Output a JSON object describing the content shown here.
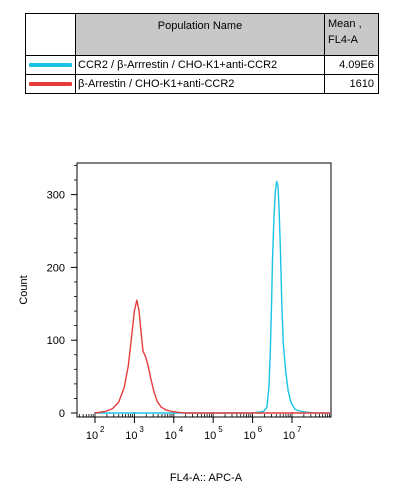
{
  "legend": {
    "header_name": "Population Name",
    "header_mean_line1": "Mean ,",
    "header_mean_line2": "FL4-A",
    "rows": [
      {
        "name": "CCR2 / β-Arrrestin / CHO-K1+anti-CCR2",
        "mean": "4.09E6",
        "color": "#19c3e6"
      },
      {
        "name": "β-Arrestin / CHO-K1+anti-CCR2",
        "mean": "1610",
        "color": "#e63c3c"
      }
    ]
  },
  "chart_data": {
    "type": "line",
    "title": "",
    "xlabel": "FL4-A:: APC-A",
    "ylabel": "Count",
    "xscale": "log",
    "xlim": [
      100,
      1000000000
    ],
    "ylim": [
      0,
      350
    ],
    "y_ticks": [
      "0",
      "100",
      "200",
      "300"
    ],
    "x_ticks": [
      {
        "base": "10",
        "exp": "2"
      },
      {
        "base": "10",
        "exp": "3"
      },
      {
        "base": "10",
        "exp": "4"
      },
      {
        "base": "10",
        "exp": "5"
      },
      {
        "base": "10",
        "exp": "6"
      },
      {
        "base": "10",
        "exp": "7"
      }
    ],
    "series": [
      {
        "name": "CCR2 / β-Arrrestin / CHO-K1+anti-CCR2",
        "color": "#19c3e6",
        "x": [
          100,
          30000,
          1000000,
          1900000,
          2300000,
          2600000,
          2800000,
          3000000,
          3200000,
          3500000,
          3800000,
          4100000,
          4400000,
          4700000,
          5100000,
          5500000,
          6000000,
          7000000,
          8000000,
          9500000,
          12000000,
          17000000,
          25000000,
          35000000,
          60000000,
          1000000000
        ],
        "y": [
          0,
          0,
          0,
          2,
          8,
          35,
          80,
          140,
          210,
          270,
          305,
          318,
          312,
          280,
          220,
          150,
          95,
          55,
          30,
          14,
          5,
          2,
          1,
          0,
          0,
          0
        ]
      },
      {
        "name": "β-Arrestin / CHO-K1+anti-CCR2",
        "color": "#e63c3c",
        "x": [
          100,
          180,
          280,
          400,
          550,
          700,
          850,
          1000,
          1150,
          1300,
          1450,
          1650,
          1900,
          2200,
          2600,
          3100,
          3800,
          4800,
          6500,
          9000,
          13000,
          20000,
          30000,
          60000,
          1000000000
        ],
        "y": [
          0,
          2,
          6,
          15,
          35,
          65,
          105,
          140,
          155,
          142,
          115,
          85,
          78,
          66,
          48,
          30,
          16,
          8,
          4,
          2,
          1,
          0,
          0,
          0,
          0
        ]
      }
    ]
  }
}
